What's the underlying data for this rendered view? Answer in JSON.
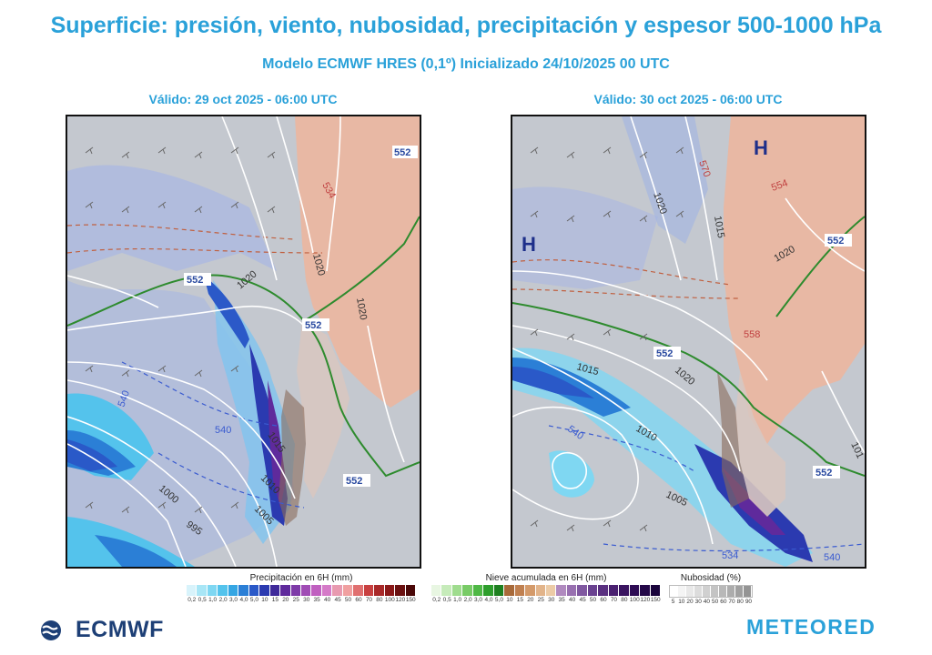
{
  "header": {
    "title": "Superficie: presión, viento, nubosidad, precipitación y espesor 500-1000 hPa",
    "subtitle": "Modelo ECMWF HRES (0,1º)  Inicializado 24/10/2025 00 UTC"
  },
  "maps": [
    {
      "valid": "Válido: 29 oct 2025 - 06:00 UTC",
      "isobar_labels": [
        "1020",
        "1020",
        "1020",
        "1015",
        "1010",
        "1005",
        "1000",
        "995"
      ],
      "thickness_labels": [
        "552",
        "552",
        "552",
        "552",
        "540",
        "540",
        "534"
      ],
      "pressure_centers": []
    },
    {
      "valid": "Válido: 30 oct 2025 - 06:00 UTC",
      "isobar_labels": [
        "1020",
        "1015",
        "1020",
        "1020",
        "1015",
        "1010",
        "1005",
        "101"
      ],
      "thickness_labels": [
        "552",
        "552",
        "552",
        "540",
        "540",
        "534",
        "558",
        "554",
        "570"
      ],
      "pressure_centers": [
        "H",
        "H"
      ]
    }
  ],
  "legends": {
    "precip": {
      "title": "Precipitación en 6H (mm)",
      "ticks": [
        "0,2",
        "0,5",
        "1,0",
        "2,0",
        "3,0",
        "4,0",
        "5,0",
        "10",
        "15",
        "20",
        "25",
        "30",
        "35",
        "40",
        "45",
        "50",
        "60",
        "70",
        "80",
        "100",
        "120",
        "150"
      ],
      "colors": [
        "#d8f3fb",
        "#a8e6f6",
        "#7fd7f2",
        "#54c3ec",
        "#35a6e3",
        "#2b7fd6",
        "#2a59c8",
        "#2b3ab0",
        "#3f2a9a",
        "#5f2a9c",
        "#7e3aa8",
        "#a04cb5",
        "#c060c0",
        "#d57ac8",
        "#e89ab0",
        "#f0a0a0",
        "#e07070",
        "#c84040",
        "#a82828",
        "#8a1818",
        "#6a1010",
        "#4a0808"
      ]
    },
    "snow": {
      "title": "Nieve acumulada en 6H (mm)",
      "ticks": [
        "0,2",
        "0,5",
        "1,0",
        "2,0",
        "3,0",
        "4,0",
        "5,0",
        "10",
        "15",
        "20",
        "25",
        "30",
        "35",
        "40",
        "45",
        "50",
        "60",
        "70",
        "80",
        "100",
        "120",
        "150"
      ],
      "colors": [
        "#e8f6e2",
        "#c6ebba",
        "#9fdc8e",
        "#78cb66",
        "#4fb845",
        "#2e9e2c",
        "#1e8020",
        "#a86a3a",
        "#c08050",
        "#d49a6a",
        "#e2b48a",
        "#eccba6",
        "#b08abf",
        "#9870b0",
        "#8058a0",
        "#6a4290",
        "#5a3080",
        "#4a2070",
        "#3a1460",
        "#2e0c54",
        "#240848",
        "#1a043c"
      ]
    },
    "cloud": {
      "title": "Nubosidad (%)",
      "ticks": [
        "5",
        "10",
        "20",
        "30",
        "40",
        "50",
        "60",
        "70",
        "80",
        "90"
      ],
      "colors": [
        "#ffffff",
        "#f4f4f4",
        "#e8e8e8",
        "#dcdcdc",
        "#d0d0d0",
        "#c4c4c4",
        "#b8b8b8",
        "#acacac",
        "#a0a0a0",
        "#949494"
      ]
    }
  },
  "logos": {
    "left": "ECMWF",
    "right": "METEORED"
  },
  "colors": {
    "accent": "#2aa1d9",
    "ecmwf_blue": "#1d3f76",
    "isobar": "#ffffff",
    "thickness_green": "#2e8b2e",
    "thickness_red": "#c04040",
    "thickness_blue": "#3a5bd0",
    "land": "#e8b8a4"
  }
}
